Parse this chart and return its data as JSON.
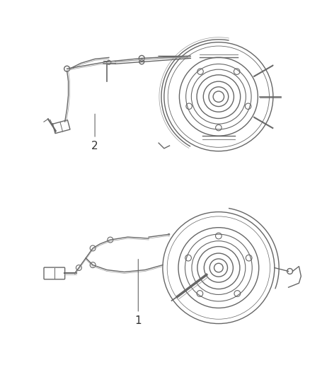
{
  "background_color": "#ffffff",
  "line_color": "#666666",
  "line_color_light": "#999999",
  "label_color": "#333333",
  "fig_width": 4.38,
  "fig_height": 5.33,
  "dpi": 100,
  "label1": "1",
  "label2": "2"
}
